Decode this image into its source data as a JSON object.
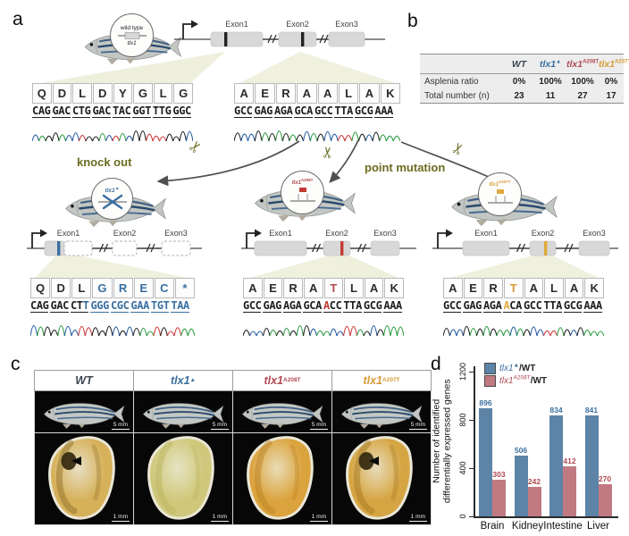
{
  "figure": {
    "panel_labels": {
      "a": "a",
      "b": "b",
      "c": "c",
      "d": "d"
    }
  },
  "colors": {
    "blue": "#3a6fa0",
    "red": "#b04a51",
    "orange": "#d99b36",
    "dark": "#3c4650",
    "bar_blue": "#5d83a7",
    "bar_red": "#c17a81",
    "olive": "#6a6c20",
    "beige": "#ecedd8",
    "exon_gray": "#d8d8d8",
    "chrom_A": "#2f9e44",
    "chrom_C": "#2b5fa8",
    "chrom_G": "#222222",
    "chrom_T": "#cf3d3d"
  },
  "panel_a": {
    "wildtype_badge": {
      "line1": "wild type",
      "line2": "tlx1"
    },
    "labels": {
      "knock_out": "knock out",
      "point_mutation": "point mutation"
    },
    "gene_wt": {
      "exons": [
        "Exon1",
        "Exon2",
        "Exon3"
      ]
    },
    "seq_wt_exon1": {
      "aa": "QDLDYGLG",
      "dna": [
        {
          "t": "CAGGACCTGGACTACGGTTTGGGC",
          "c": "default"
        }
      ]
    },
    "seq_wt_exon2": {
      "aa": "AERAALAK",
      "dna": [
        {
          "t": "GCCGAGAGAGCAGCCTTAGCGAAA",
          "c": "default"
        }
      ]
    },
    "mutants": [
      {
        "id": "tlx1-delta",
        "label": "tlx1",
        "sup": "▲",
        "color_key": "blue",
        "exons": [
          "Exon1",
          "Exon2",
          "Exon3"
        ],
        "seq": {
          "aa": "QDLGREC*",
          "aa_colors": [
            null,
            null,
            null,
            "blue",
            "blue",
            "blue",
            "blue",
            "blue"
          ],
          "dna": [
            {
              "t": "CAGGACCT",
              "c": "default"
            },
            {
              "t": "TGGGCGCGAATGTTAA",
              "c": "blue"
            }
          ]
        }
      },
      {
        "id": "tlx1-A208T",
        "label": "tlx1",
        "sup": "A208T",
        "color_key": "red",
        "exons": [
          "Exon1",
          "Exon2",
          "Exon3"
        ],
        "seq": {
          "aa": "AERATLAK",
          "aa_colors": [
            null,
            null,
            null,
            null,
            "red",
            null,
            null,
            null
          ],
          "dna": [
            {
              "t": "GCCGAGAGAGCA",
              "c": "default"
            },
            {
              "t": "A",
              "c": "red"
            },
            {
              "t": "CCTTAGCGAAA",
              "c": "default"
            }
          ]
        }
      },
      {
        "id": "tlx1-A207T",
        "label": "tlx1",
        "sup": "A207T",
        "color_key": "orange",
        "exons": [
          "Exon1",
          "Exon2",
          "Exon3"
        ],
        "seq": {
          "aa": "AERTALAK",
          "aa_colors": [
            null,
            null,
            null,
            "orange",
            null,
            null,
            null,
            null
          ],
          "dna": [
            {
              "t": "GCCGAGAGA",
              "c": "default"
            },
            {
              "t": "A",
              "c": "orange"
            },
            {
              "t": "CAGCCTTAGCGAAA",
              "c": "default"
            }
          ]
        }
      }
    ]
  },
  "panel_b": {
    "columns": [
      {
        "base": "WT",
        "sup": "",
        "color_key": "dark"
      },
      {
        "base": "tlx1",
        "sup": "▲",
        "color_key": "blue"
      },
      {
        "base": "tlx1",
        "sup": "A208T",
        "color_key": "red"
      },
      {
        "base": "tlx1",
        "sup": "A207T",
        "color_key": "orange"
      }
    ],
    "rows": [
      {
        "label": "Asplenia ratio",
        "values": [
          "0%",
          "100%",
          "100%",
          "0%"
        ]
      },
      {
        "label": "Total number (n)",
        "values": [
          "23",
          "11",
          "27",
          "17"
        ]
      }
    ]
  },
  "panel_c": {
    "columns": [
      {
        "base": "WT",
        "sup": "",
        "color_key": "dark",
        "fish_scale": "5 mm",
        "organ_scale": "1 mm",
        "has_spleen": true,
        "tone": "wt"
      },
      {
        "base": "tlx1",
        "sup": "▲",
        "color_key": "blue",
        "fish_scale": "5 mm",
        "organ_scale": "1 mm",
        "has_spleen": false,
        "tone": "pale"
      },
      {
        "base": "tlx1",
        "sup": "A208T",
        "color_key": "red",
        "fish_scale": "5 mm",
        "organ_scale": "1 mm",
        "has_spleen": false,
        "tone": "orange"
      },
      {
        "base": "tlx1",
        "sup": "A207T",
        "color_key": "orange",
        "fish_scale": "5 mm",
        "organ_scale": "1 mm",
        "has_spleen": true,
        "tone": "wt2"
      }
    ]
  },
  "chart_data": {
    "type": "bar",
    "categories": [
      "Brain",
      "Kidney",
      "Intestine",
      "Liver"
    ],
    "series": [
      {
        "name": "tlx1▲/WT",
        "color": "#5d83a7",
        "values": [
          896,
          506,
          834,
          841
        ]
      },
      {
        "name": "tlx1A208T/WT",
        "color": "#c17a81",
        "values": [
          303,
          242,
          412,
          270
        ]
      }
    ],
    "legend": [
      {
        "base": "tlx1",
        "sup": "▲",
        "suffix": "/WT",
        "color_key": "blue"
      },
      {
        "base": "tlx1",
        "sup": "A208T",
        "suffix": "/WT",
        "color_key": "red"
      }
    ],
    "ylabel_line1": "Number of identified",
    "ylabel_line2": "differentially expressed genes",
    "yticks": [
      0,
      400,
      800,
      1200
    ],
    "ylim": [
      0,
      1200
    ],
    "grid": false,
    "legend_position": "top-left"
  }
}
